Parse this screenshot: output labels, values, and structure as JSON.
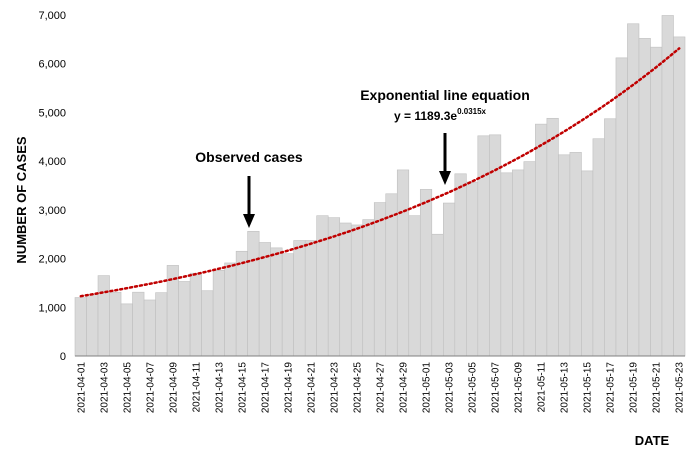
{
  "chart_data": {
    "type": "bar",
    "ylabel": "NUMBER OF CASES",
    "xlabel": "DATE",
    "ylim": [
      0,
      7000
    ],
    "yticks": [
      "0",
      "1,000",
      "2,000",
      "3,000",
      "4,000",
      "5,000",
      "6,000",
      "7,000"
    ],
    "ytick_values": [
      0,
      1000,
      2000,
      3000,
      4000,
      5000,
      6000,
      7000
    ],
    "x_tick_labels": [
      "2021-04-01",
      "2021-04-03",
      "2021-04-05",
      "2021-04-07",
      "2021-04-09",
      "2021-04-11",
      "2021-04-13",
      "2021-04-15",
      "2021-04-17",
      "2021-04-19",
      "2021-04-21",
      "2021-04-23",
      "2021-04-25",
      "2021-04-27",
      "2021-04-29",
      "2021-05-01",
      "2021-05-03",
      "2021-05-05",
      "2021-05-07",
      "2021-05-09",
      "2021-05-11",
      "2021-05-13",
      "2021-05-15",
      "2021-05-17",
      "2021-05-19",
      "2021-05-21",
      "2021-05-23"
    ],
    "series": [
      {
        "values": [
          1200,
          1260,
          1650,
          1310,
          1070,
          1310,
          1150,
          1300,
          1860,
          1530,
          1700,
          1340,
          1760,
          1910,
          2150,
          2560,
          2330,
          2220,
          2100,
          2370,
          2370,
          2880,
          2840,
          2730,
          2690,
          2800,
          3150,
          3330,
          3820,
          2880,
          3420,
          2500,
          3140,
          3740,
          3570,
          4520,
          4540,
          3760,
          3820,
          3990,
          4760,
          4880,
          4130,
          4180,
          3800,
          4460,
          4870,
          6120,
          6820,
          6520,
          6340,
          6990,
          6550
        ]
      }
    ],
    "trendline": {
      "type": "exponential",
      "a": 1189.3,
      "b": 0.0315
    },
    "annotations": {
      "observed_label": "Observed cases",
      "exp_title": "Exponential line equation",
      "eq_prefix": "y = 1189.3e",
      "eq_sup": "0.0315x"
    },
    "colors": {
      "bar_fill": "#d9d9d9",
      "bar_stroke": "#bfbfbf",
      "trend": "#c00000",
      "axis": "#808080"
    },
    "grid": false
  }
}
